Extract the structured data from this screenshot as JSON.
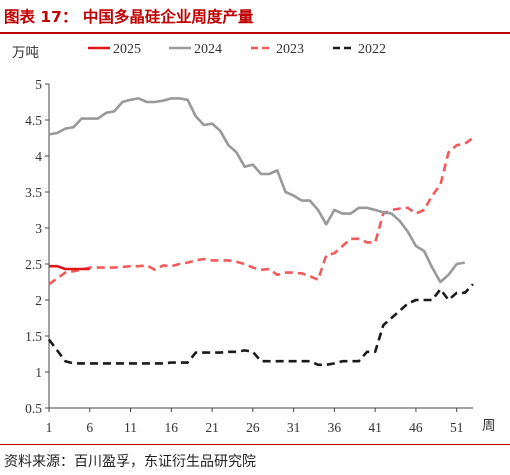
{
  "figure": {
    "title": "图表 17： 中国多晶硅企业周度产量",
    "source": "资料来源：百川盈孚，东证衍生品研究院"
  },
  "chart_data": {
    "type": "line",
    "ylabel": "万吨",
    "xlabel": "周",
    "xlim": [
      1,
      53
    ],
    "ylim": [
      0.5,
      5
    ],
    "x_ticks": [
      "1",
      "6",
      "11",
      "16",
      "21",
      "26",
      "31",
      "36",
      "41",
      "46",
      "51"
    ],
    "y_ticks": [
      "0.5",
      "1",
      "1.5",
      "2",
      "2.5",
      "3",
      "3.5",
      "4",
      "4.5",
      "5"
    ],
    "legend_position": "top",
    "series": [
      {
        "name": "2025",
        "color": "#e0151b",
        "dash": "solid",
        "x": [
          1,
          2,
          3,
          4,
          5,
          6
        ],
        "y": [
          2.47,
          2.47,
          2.43,
          2.43,
          2.43,
          2.43
        ]
      },
      {
        "name": "2024",
        "color": "#999999",
        "dash": "solid",
        "x": [
          1,
          2,
          3,
          4,
          5,
          6,
          7,
          8,
          9,
          10,
          11,
          12,
          13,
          14,
          15,
          16,
          17,
          18,
          19,
          20,
          21,
          22,
          23,
          24,
          25,
          26,
          27,
          28,
          29,
          30,
          31,
          32,
          33,
          34,
          35,
          36,
          37,
          38,
          39,
          40,
          41,
          42,
          43,
          44,
          45,
          46,
          47,
          48,
          49,
          50,
          51,
          52
        ],
        "y": [
          4.3,
          4.32,
          4.38,
          4.4,
          4.52,
          4.52,
          4.52,
          4.6,
          4.62,
          4.75,
          4.78,
          4.8,
          4.75,
          4.75,
          4.77,
          4.8,
          4.8,
          4.78,
          4.55,
          4.43,
          4.45,
          4.35,
          4.15,
          4.05,
          3.85,
          3.88,
          3.75,
          3.75,
          3.8,
          3.5,
          3.45,
          3.38,
          3.38,
          3.25,
          3.05,
          3.25,
          3.2,
          3.2,
          3.28,
          3.28,
          3.25,
          3.22,
          3.2,
          3.1,
          2.95,
          2.75,
          2.68,
          2.45,
          2.25,
          2.35,
          2.5,
          2.52
        ]
      },
      {
        "name": "2023",
        "color": "#f25a5a",
        "dash": "dashed",
        "x": [
          1,
          2,
          3,
          4,
          5,
          6,
          7,
          8,
          9,
          10,
          11,
          12,
          13,
          14,
          15,
          16,
          17,
          18,
          19,
          20,
          21,
          22,
          23,
          24,
          25,
          26,
          27,
          28,
          29,
          30,
          31,
          32,
          33,
          34,
          35,
          36,
          37,
          38,
          39,
          40,
          41,
          42,
          43,
          44,
          45,
          46,
          47,
          48,
          49,
          50,
          51,
          52,
          53
        ],
        "y": [
          2.22,
          2.3,
          2.38,
          2.4,
          2.42,
          2.45,
          2.45,
          2.45,
          2.45,
          2.46,
          2.47,
          2.47,
          2.48,
          2.42,
          2.48,
          2.47,
          2.5,
          2.52,
          2.55,
          2.57,
          2.55,
          2.55,
          2.55,
          2.53,
          2.5,
          2.45,
          2.42,
          2.43,
          2.35,
          2.38,
          2.38,
          2.37,
          2.33,
          2.28,
          2.62,
          2.65,
          2.75,
          2.85,
          2.85,
          2.8,
          2.8,
          3.2,
          3.25,
          3.27,
          3.28,
          3.2,
          3.25,
          3.45,
          3.6,
          4.05,
          4.15,
          4.17,
          4.25
        ]
      },
      {
        "name": "2022",
        "color": "#1a1a1a",
        "dash": "dashed",
        "x": [
          1,
          2,
          3,
          4,
          5,
          6,
          7,
          8,
          9,
          10,
          11,
          12,
          13,
          14,
          15,
          16,
          17,
          18,
          19,
          20,
          21,
          22,
          23,
          24,
          25,
          26,
          27,
          28,
          29,
          30,
          31,
          32,
          33,
          34,
          35,
          36,
          37,
          38,
          39,
          40,
          41,
          42,
          43,
          44,
          45,
          46,
          47,
          48,
          49,
          50,
          51,
          52,
          53
        ],
        "y": [
          1.45,
          1.3,
          1.15,
          1.12,
          1.12,
          1.12,
          1.12,
          1.12,
          1.12,
          1.12,
          1.12,
          1.12,
          1.12,
          1.12,
          1.12,
          1.13,
          1.13,
          1.13,
          1.27,
          1.27,
          1.27,
          1.27,
          1.28,
          1.28,
          1.3,
          1.28,
          1.15,
          1.15,
          1.15,
          1.15,
          1.15,
          1.15,
          1.15,
          1.1,
          1.1,
          1.12,
          1.15,
          1.15,
          1.15,
          1.28,
          1.28,
          1.65,
          1.75,
          1.85,
          1.95,
          2.0,
          2.0,
          2.0,
          2.15,
          2.0,
          2.1,
          2.1,
          2.22
        ]
      }
    ]
  }
}
